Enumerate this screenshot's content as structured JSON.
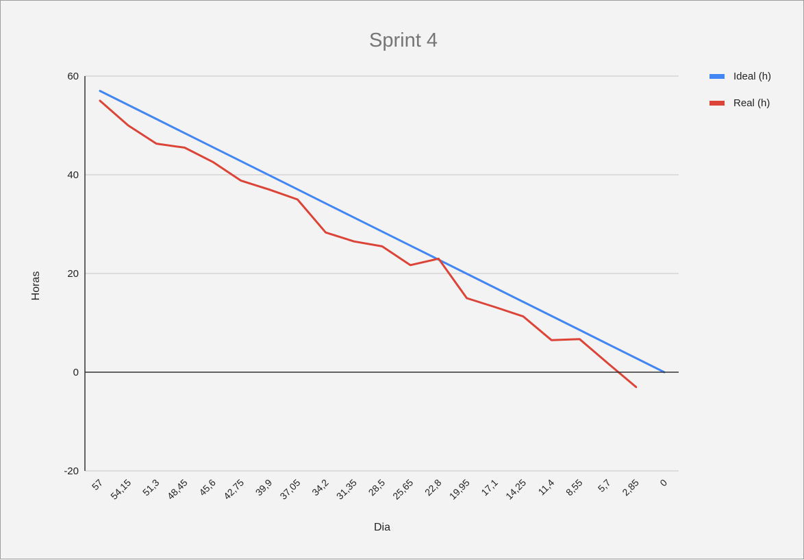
{
  "chart_data": {
    "type": "line",
    "title": "Sprint 4",
    "xlabel": "Dia",
    "ylabel": "Horas",
    "ylim": [
      -20,
      60
    ],
    "yticks": [
      "60",
      "40",
      "20",
      "0",
      "-20"
    ],
    "grid": true,
    "legend_position": "right",
    "categories": [
      "57",
      "54,15",
      "51,3",
      "48,45",
      "45,6",
      "42,75",
      "39,9",
      "37,05",
      "34,2",
      "31,35",
      "28,5",
      "25,65",
      "22,8",
      "19,95",
      "17,1",
      "14,25",
      "11,4",
      "8,55",
      "5,7",
      "2,85",
      "0"
    ],
    "series": [
      {
        "name": "Ideal (h)",
        "color": "#4285f4",
        "values": [
          57,
          54.15,
          51.3,
          48.45,
          45.6,
          42.75,
          39.9,
          37.05,
          34.2,
          31.35,
          28.5,
          25.65,
          22.8,
          19.95,
          17.1,
          14.25,
          11.4,
          8.55,
          5.7,
          2.85,
          0
        ]
      },
      {
        "name": "Real (h)",
        "color": "#db4437",
        "values": [
          55,
          50,
          46.3,
          45.5,
          42.6,
          38.8,
          37,
          35,
          28.3,
          26.5,
          25.5,
          21.7,
          23,
          15,
          13.2,
          11.3,
          6.5,
          6.7,
          1.8,
          -3,
          null
        ]
      }
    ]
  }
}
